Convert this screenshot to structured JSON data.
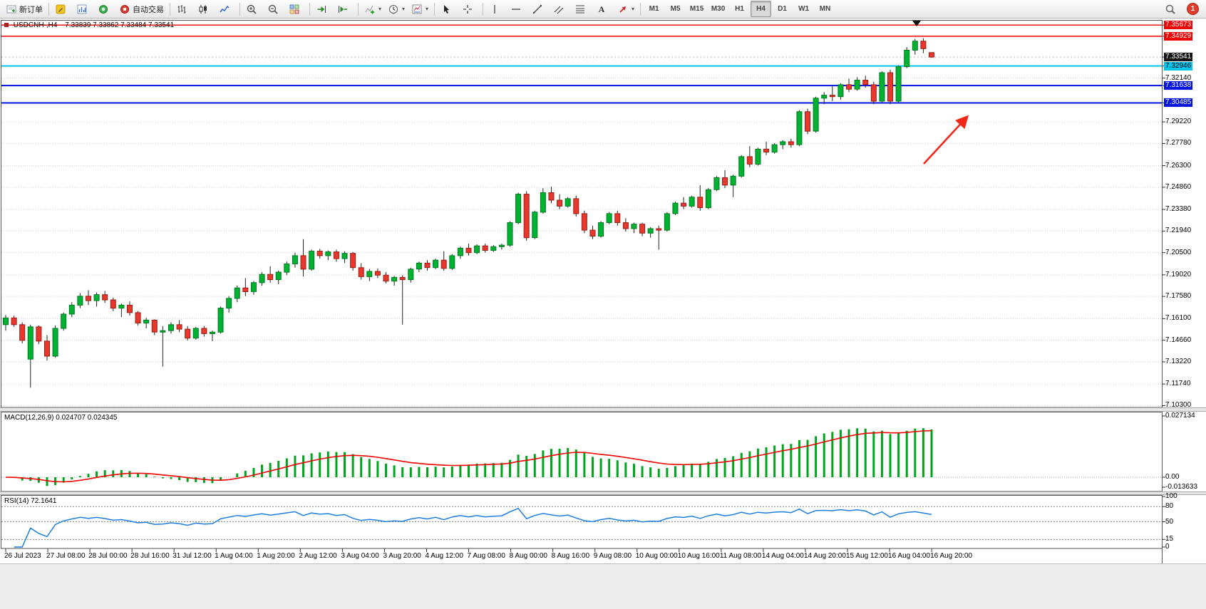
{
  "toolbar": {
    "notification_count": "1",
    "items": [
      {
        "name": "new-order-button",
        "icon": "new-order",
        "label": "新订单"
      },
      {
        "name": "separator"
      },
      {
        "name": "metaeditor-button",
        "icon": "editor"
      },
      {
        "name": "chart-window-button",
        "icon": "chart-window"
      },
      {
        "name": "data-window-button",
        "icon": "sound"
      },
      {
        "name": "autotrading-button",
        "icon": "autotrading",
        "label": "自动交易"
      },
      {
        "name": "separator"
      },
      {
        "name": "bar-chart-button",
        "icon": "bars"
      },
      {
        "name": "candlestick-chart-button",
        "icon": "candles"
      },
      {
        "name": "line-chart-button",
        "icon": "linechart"
      },
      {
        "name": "separator"
      },
      {
        "name": "zoom-in-button",
        "icon": "zoom-in"
      },
      {
        "name": "zoom-out-button",
        "icon": "zoom-out"
      },
      {
        "name": "tile-windows-button",
        "icon": "tile"
      },
      {
        "name": "separator"
      },
      {
        "name": "auto-scroll-button",
        "icon": "autoscroll"
      },
      {
        "name": "chart-shift-button",
        "icon": "chartshift"
      },
      {
        "name": "separator"
      },
      {
        "name": "indicators-button",
        "icon": "indicators",
        "caret": true
      },
      {
        "name": "periods-button",
        "icon": "clock",
        "caret": true
      },
      {
        "name": "templates-button",
        "icon": "template",
        "caret": true
      },
      {
        "name": "separator"
      },
      {
        "name": "cursor-button",
        "icon": "cursor"
      },
      {
        "name": "crosshair-button",
        "icon": "crosshair"
      },
      {
        "name": "separator"
      },
      {
        "name": "vertical-line-button",
        "icon": "vline"
      },
      {
        "name": "horizontal-line-button",
        "icon": "hline"
      },
      {
        "name": "trendline-button",
        "icon": "trendline"
      },
      {
        "name": "channel-button",
        "icon": "channel"
      },
      {
        "name": "fibonacci-button",
        "icon": "fibo"
      },
      {
        "name": "text-button",
        "icon": "text"
      },
      {
        "name": "arrows-button",
        "icon": "arrows",
        "caret": true
      },
      {
        "name": "separator"
      }
    ],
    "timeframes": [
      "M1",
      "M5",
      "M15",
      "M30",
      "H1",
      "H4",
      "D1",
      "W1",
      "MN"
    ],
    "active_timeframe": "H4"
  },
  "chart_data": {
    "type": "candlestick",
    "title": "USDCNH-,H4",
    "ohlc_display": "7.33839 7.33862 7.33484 7.33541",
    "symbol": "USDCNH",
    "timeframe": "H4",
    "price_range": {
      "max": 7.3592,
      "min": 7.1018
    },
    "colors": {
      "up": "#00b232",
      "down": "#e8372c",
      "wick": "#222222",
      "grid": "#d0d0d0"
    },
    "current_price": {
      "text": "7.33541",
      "value": 7.33541
    },
    "price_axis_labels": [
      {
        "text": "7.35673",
        "style": "red"
      },
      {
        "text": "7.34929",
        "style": "red"
      },
      {
        "text": "7.33541",
        "style": "current"
      },
      {
        "text": "7.32946",
        "style": "cyan"
      },
      {
        "text": "7.32140",
        "style": "plain"
      },
      {
        "text": "7.31638",
        "style": "blue"
      },
      {
        "text": "7.30485",
        "style": "blue"
      },
      {
        "text": "7.29220",
        "style": "plain"
      },
      {
        "text": "7.27780",
        "style": "plain"
      },
      {
        "text": "7.26300",
        "style": "plain"
      },
      {
        "text": "7.24860",
        "style": "plain"
      },
      {
        "text": "7.23380",
        "style": "plain"
      },
      {
        "text": "7.21940",
        "style": "plain"
      },
      {
        "text": "7.20500",
        "style": "plain"
      },
      {
        "text": "7.19020",
        "style": "plain"
      },
      {
        "text": "7.17580",
        "style": "plain"
      },
      {
        "text": "7.16100",
        "style": "plain"
      },
      {
        "text": "7.14660",
        "style": "plain"
      },
      {
        "text": "7.13220",
        "style": "plain"
      },
      {
        "text": "7.11740",
        "style": "plain"
      },
      {
        "text": "7.10300",
        "style": "plain"
      }
    ],
    "horizontal_lines": [
      {
        "price": 7.35673,
        "color": "#f00000",
        "width": 1.4
      },
      {
        "price": 7.34929,
        "color": "#f00000",
        "width": 1.4
      },
      {
        "price": 7.32946,
        "color": "#00c5f0",
        "width": 2
      },
      {
        "price": 7.31638,
        "color": "#0013e0",
        "width": 2
      },
      {
        "price": 7.30485,
        "color": "#0013e0",
        "width": 2
      }
    ],
    "time_labels": [
      "26 Jul 2023",
      "27 Jul 08:00",
      "28 Jul 00:00",
      "28 Jul 16:00",
      "31 Jul 12:00",
      "1 Aug 04:00",
      "1 Aug 20:00",
      "2 Aug 12:00",
      "3 Aug 04:00",
      "3 Aug 20:00",
      "4 Aug 12:00",
      "7 Aug 08:00",
      "8 Aug 00:00",
      "8 Aug 16:00",
      "9 Aug 08:00",
      "10 Aug 00:00",
      "10 Aug 16:00",
      "11 Aug 08:00",
      "14 Aug 04:00",
      "14 Aug 20:00",
      "15 Aug 12:00",
      "16 Aug 04:00",
      "16 Aug 20:00"
    ],
    "candles": [
      [
        7.157,
        7.1635,
        7.153,
        7.1615
      ],
      [
        7.1615,
        7.163,
        7.1555,
        7.157
      ],
      [
        7.157,
        7.1585,
        7.1445,
        7.1465
      ],
      [
        7.134,
        7.157,
        7.115,
        7.1555
      ],
      [
        7.1555,
        7.1565,
        7.144,
        7.146
      ],
      [
        7.146,
        7.15,
        7.133,
        7.136
      ],
      [
        7.136,
        7.1565,
        7.135,
        7.1545
      ],
      [
        7.1545,
        7.165,
        7.153,
        7.164
      ],
      [
        7.164,
        7.172,
        7.162,
        7.17
      ],
      [
        7.17,
        7.178,
        7.168,
        7.176
      ],
      [
        7.176,
        7.18,
        7.17,
        7.173
      ],
      [
        7.173,
        7.1785,
        7.169,
        7.177
      ],
      [
        7.177,
        7.1795,
        7.1715,
        7.1735
      ],
      [
        7.1735,
        7.175,
        7.166,
        7.168
      ],
      [
        7.168,
        7.171,
        7.162,
        7.17
      ],
      [
        7.17,
        7.1725,
        7.163,
        7.165
      ],
      [
        7.165,
        7.166,
        7.1565,
        7.158
      ],
      [
        7.158,
        7.1615,
        7.1545,
        7.16
      ],
      [
        7.16,
        7.1605,
        7.15,
        7.152
      ],
      [
        7.152,
        7.156,
        7.129,
        7.153
      ],
      [
        7.153,
        7.1585,
        7.151,
        7.157
      ],
      [
        7.157,
        7.16,
        7.152,
        7.154
      ],
      [
        7.154,
        7.156,
        7.1465,
        7.148
      ],
      [
        7.148,
        7.1555,
        7.147,
        7.1545
      ],
      [
        7.1545,
        7.156,
        7.149,
        7.151
      ],
      [
        7.151,
        7.153,
        7.146,
        7.152
      ],
      [
        7.152,
        7.169,
        7.151,
        7.168
      ],
      [
        7.168,
        7.176,
        7.165,
        7.1745
      ],
      [
        7.1745,
        7.183,
        7.172,
        7.1815
      ],
      [
        7.1815,
        7.188,
        7.176,
        7.179
      ],
      [
        7.179,
        7.186,
        7.177,
        7.185
      ],
      [
        7.185,
        7.192,
        7.183,
        7.1905
      ],
      [
        7.1905,
        7.196,
        7.185,
        7.187
      ],
      [
        7.187,
        7.193,
        7.184,
        7.192
      ],
      [
        7.192,
        7.199,
        7.19,
        7.1975
      ],
      [
        7.1975,
        7.205,
        7.195,
        7.203
      ],
      [
        7.203,
        7.214,
        7.189,
        7.194
      ],
      [
        7.194,
        7.207,
        7.193,
        7.206
      ],
      [
        7.206,
        7.2075,
        7.201,
        7.203
      ],
      [
        7.203,
        7.2065,
        7.2,
        7.2055
      ],
      [
        7.2055,
        7.207,
        7.199,
        7.201
      ],
      [
        7.201,
        7.206,
        7.198,
        7.2045
      ],
      [
        7.2045,
        7.2055,
        7.193,
        7.195
      ],
      [
        7.195,
        7.198,
        7.187,
        7.189
      ],
      [
        7.189,
        7.194,
        7.186,
        7.1925
      ],
      [
        7.1925,
        7.1945,
        7.188,
        7.19
      ],
      [
        7.19,
        7.192,
        7.1845,
        7.186
      ],
      [
        7.186,
        7.1895,
        7.183,
        7.1885
      ],
      [
        7.1885,
        7.19,
        7.157,
        7.187
      ],
      [
        7.187,
        7.195,
        7.185,
        7.194
      ],
      [
        7.194,
        7.199,
        7.192,
        7.198
      ],
      [
        7.198,
        7.2,
        7.193,
        7.195
      ],
      [
        7.195,
        7.201,
        7.194,
        7.2
      ],
      [
        7.2,
        7.206,
        7.193,
        7.1945
      ],
      [
        7.1945,
        7.204,
        7.1935,
        7.203
      ],
      [
        7.203,
        7.209,
        7.201,
        7.208
      ],
      [
        7.208,
        7.211,
        7.203,
        7.205
      ],
      [
        7.205,
        7.2105,
        7.204,
        7.2095
      ],
      [
        7.2095,
        7.211,
        7.205,
        7.2065
      ],
      [
        7.2065,
        7.21,
        7.2055,
        7.209
      ],
      [
        7.209,
        7.211,
        7.207,
        7.21
      ],
      [
        7.21,
        7.226,
        7.209,
        7.225
      ],
      [
        7.225,
        7.245,
        7.224,
        7.244
      ],
      [
        7.244,
        7.246,
        7.213,
        7.215
      ],
      [
        7.215,
        7.233,
        7.214,
        7.232
      ],
      [
        7.232,
        7.248,
        7.231,
        7.245
      ],
      [
        7.245,
        7.249,
        7.238,
        7.24
      ],
      [
        7.24,
        7.244,
        7.234,
        7.236
      ],
      [
        7.236,
        7.242,
        7.235,
        7.241
      ],
      [
        7.241,
        7.243,
        7.229,
        7.231
      ],
      [
        7.231,
        7.233,
        7.218,
        7.22
      ],
      [
        7.22,
        7.223,
        7.214,
        7.216
      ],
      [
        7.216,
        7.226,
        7.215,
        7.225
      ],
      [
        7.225,
        7.232,
        7.224,
        7.231
      ],
      [
        7.231,
        7.233,
        7.223,
        7.225
      ],
      [
        7.225,
        7.228,
        7.219,
        7.221
      ],
      [
        7.221,
        7.225,
        7.218,
        7.224
      ],
      [
        7.224,
        7.225,
        7.216,
        7.218
      ],
      [
        7.218,
        7.222,
        7.215,
        7.221
      ],
      [
        7.221,
        7.223,
        7.207,
        7.22
      ],
      [
        7.22,
        7.232,
        7.219,
        7.231
      ],
      [
        7.231,
        7.239,
        7.23,
        7.238
      ],
      [
        7.238,
        7.242,
        7.234,
        7.236
      ],
      [
        7.236,
        7.243,
        7.235,
        7.242
      ],
      [
        7.242,
        7.25,
        7.233,
        7.235
      ],
      [
        7.235,
        7.248,
        7.234,
        7.247
      ],
      [
        7.247,
        7.256,
        7.246,
        7.255
      ],
      [
        7.255,
        7.26,
        7.248,
        7.25
      ],
      [
        7.25,
        7.257,
        7.242,
        7.256
      ],
      [
        7.256,
        7.27,
        7.255,
        7.269
      ],
      [
        7.269,
        7.276,
        7.262,
        7.264
      ],
      [
        7.264,
        7.275,
        7.263,
        7.274
      ],
      [
        7.274,
        7.279,
        7.27,
        7.272
      ],
      [
        7.272,
        7.278,
        7.271,
        7.277
      ],
      [
        7.277,
        7.28,
        7.274,
        7.279
      ],
      [
        7.279,
        7.281,
        7.275,
        7.277
      ],
      [
        7.277,
        7.3,
        7.276,
        7.299
      ],
      [
        7.299,
        7.301,
        7.284,
        7.286
      ],
      [
        7.286,
        7.309,
        7.285,
        7.308
      ],
      [
        7.308,
        7.312,
        7.304,
        7.31
      ],
      [
        7.31,
        7.316,
        7.306,
        7.309
      ],
      [
        7.309,
        7.318,
        7.307,
        7.317
      ],
      [
        7.317,
        7.321,
        7.312,
        7.314
      ],
      [
        7.314,
        7.322,
        7.313,
        7.32
      ],
      [
        7.32,
        7.323,
        7.315,
        7.317
      ],
      [
        7.317,
        7.319,
        7.304,
        7.306
      ],
      [
        7.306,
        7.326,
        7.305,
        7.325
      ],
      [
        7.325,
        7.327,
        7.304,
        7.306
      ],
      [
        7.306,
        7.33,
        7.305,
        7.329
      ],
      [
        7.329,
        7.342,
        7.328,
        7.34
      ],
      [
        7.34,
        7.3475,
        7.337,
        7.346
      ],
      [
        7.346,
        7.348,
        7.338,
        7.341
      ],
      [
        7.33839,
        7.33862,
        7.33484,
        7.33541
      ]
    ],
    "macd": {
      "label": "MACD(12,26,9) 0.024707 0.024345",
      "fast": 12,
      "slow": 26,
      "signal": 9,
      "value": 0.024707,
      "signal_value": 0.024345,
      "axis_labels": [
        "0.027134",
        "0.00",
        "-0.013633"
      ],
      "max": 0.027134,
      "min": -0.013633,
      "hist_color": "#00a51e",
      "signal_color": "#f00000"
    },
    "rsi": {
      "label": "RSI(14) 72.1641",
      "period": 14,
      "current": 72.1641,
      "axis_labels": [
        "100",
        "80",
        "50",
        "15",
        "0"
      ],
      "levels": [
        80,
        50,
        15
      ],
      "line_color": "#1f7fe0"
    },
    "arrow_annotation": {
      "color": "#f22718"
    }
  }
}
